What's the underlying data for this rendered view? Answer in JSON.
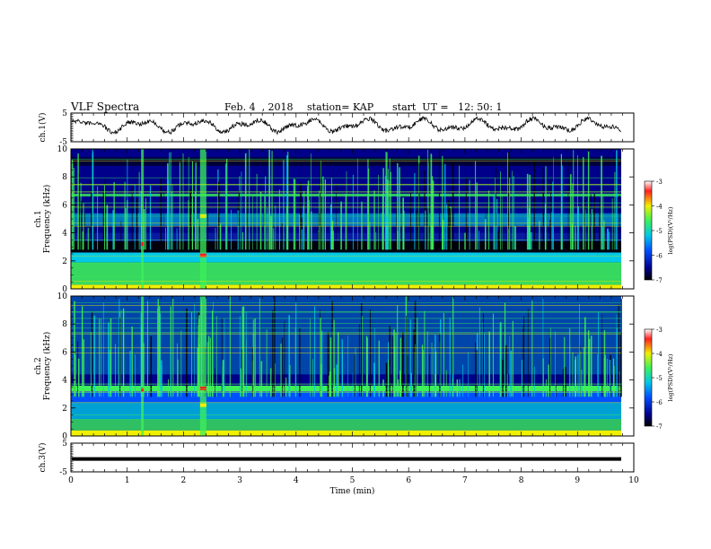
{
  "header": {
    "title": "VLF Spectra",
    "date": "Feb. 4  , 2018",
    "station": "station= KAP",
    "start": "start  UT =   12: 50: 1"
  },
  "chart_data": [
    {
      "type": "line",
      "ylabel": "ch.1(V)",
      "ylim": [
        -5,
        5
      ],
      "yticks": [
        "5",
        "-5"
      ],
      "xlim": [
        0,
        10
      ],
      "note": "noisy waveform oscillating around 0 V across 0-9.8 min"
    },
    {
      "type": "heatmap",
      "ylabel": "ch.1\nFrequency (kHz)",
      "ylim": [
        0,
        10
      ],
      "yticks": [
        "0",
        "2",
        "4",
        "6",
        "8",
        "10"
      ],
      "xlim": [
        0,
        9.8
      ],
      "colorbar": {
        "label": "log(PSD)(V²/Hz)",
        "range": [
          -7,
          -3
        ],
        "ticks": [
          "-3",
          "-4",
          "-5",
          "-6",
          "-7"
        ]
      }
    },
    {
      "type": "heatmap",
      "ylabel": "ch.2\nFrequency (kHz)",
      "ylim": [
        0,
        10
      ],
      "yticks": [
        "0",
        "2",
        "4",
        "6",
        "8",
        "10"
      ],
      "xlim": [
        0,
        9.8
      ],
      "colorbar": {
        "label": "log(PSD)(V²/Hz)",
        "range": [
          -7,
          -3
        ],
        "ticks": [
          "-3",
          "-4",
          "-5",
          "-6",
          "-7"
        ]
      }
    },
    {
      "type": "line",
      "ylabel": "ch.3(V)",
      "ylim": [
        -5,
        5
      ],
      "yticks": [
        "5",
        "-5"
      ],
      "values_constant": -0.5,
      "xlim": [
        0,
        10
      ]
    }
  ],
  "xaxis": {
    "label": "Time  (min)",
    "ticks": [
      "0",
      "1",
      "2",
      "3",
      "4",
      "5",
      "6",
      "7",
      "8",
      "9",
      "10"
    ]
  },
  "colors": {
    "dark_blue": "#00008b",
    "cyan": "#00c8e6",
    "green": "#3cf05a",
    "yellow": "#f0f000",
    "red": "#ff2020"
  }
}
